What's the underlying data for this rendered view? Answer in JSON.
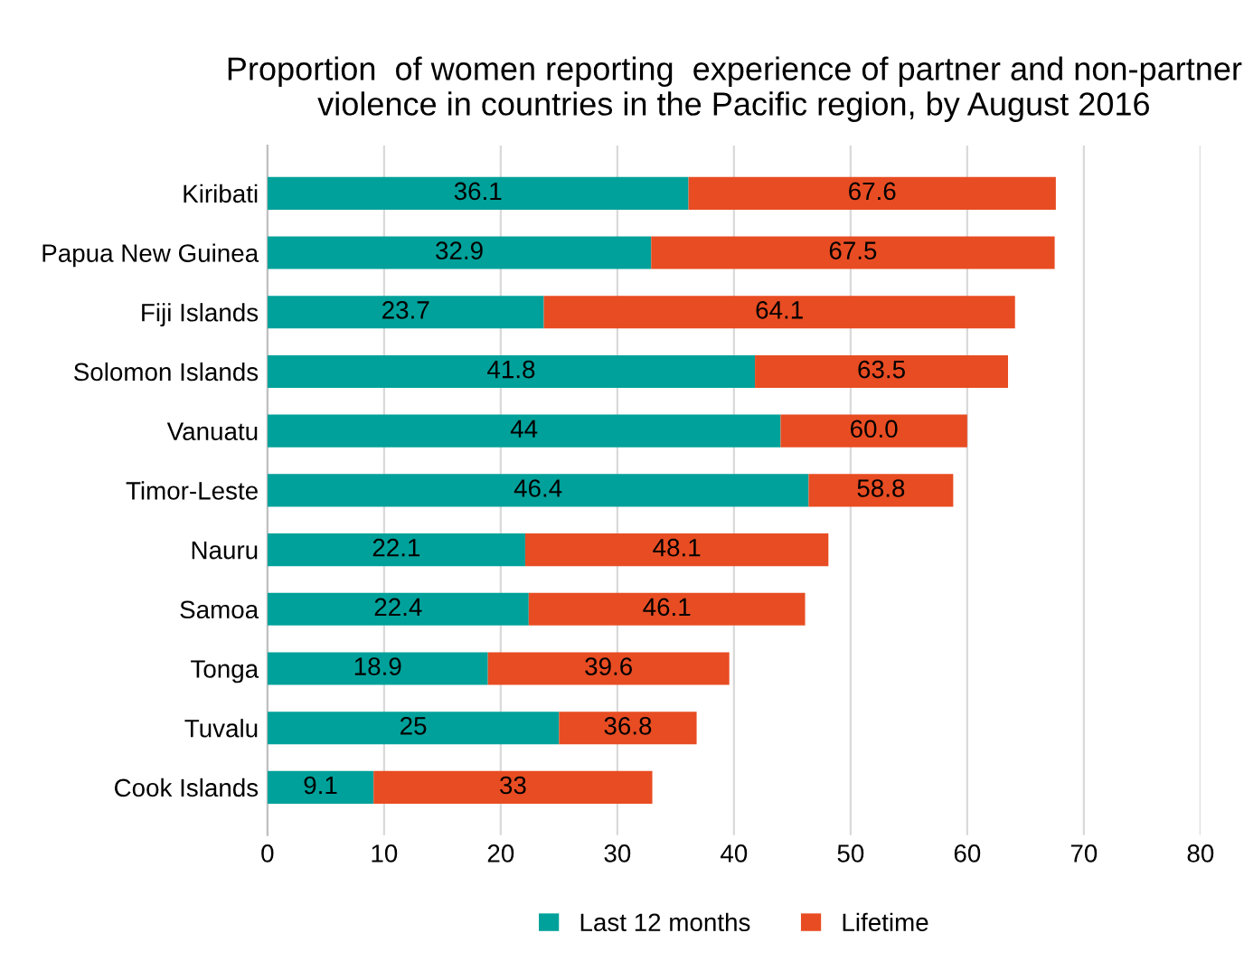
{
  "chart_data": {
    "type": "bar",
    "orientation": "horizontal",
    "stacked": true,
    "title": "Proportion  of women reporting  experience of partner and non-partner violence in countries in the Pacific region, by August 2016",
    "categories": [
      "Kiribati",
      "Papua New Guinea",
      "Fiji Islands",
      "Solomon Islands",
      "Vanuatu",
      "Timor-Leste",
      "Nauru",
      "Samoa",
      "Tonga",
      "Tuvalu",
      "Cook Islands"
    ],
    "series": [
      {
        "name": "Last 12 months",
        "color": "#00a19a",
        "values": [
          36.1,
          32.9,
          23.7,
          41.8,
          44,
          46.4,
          22.1,
          22.4,
          18.9,
          25,
          9.1
        ],
        "value_labels": [
          "36.1",
          "32.9",
          "23.7",
          "41.8",
          "44",
          "46.4",
          "22.1",
          "22.4",
          "18.9",
          "25",
          "9.1"
        ]
      },
      {
        "name": "Lifetime",
        "color": "#e84c22",
        "values": [
          31.5,
          34.6,
          40.4,
          21.7,
          16.0,
          12.4,
          26.0,
          23.7,
          20.7,
          11.8,
          23.9
        ]
      }
    ],
    "totals": [
      "67.6",
      "67.5",
      "64.1",
      "63.5",
      "60.0",
      "58.8",
      "48.1",
      "46.1",
      "39.6",
      "36.8",
      "33"
    ],
    "xlim": [
      0,
      80
    ],
    "xticks": [
      0,
      10,
      20,
      30,
      40,
      50,
      60,
      70,
      80
    ],
    "grid": "x",
    "legend": "bottom"
  }
}
